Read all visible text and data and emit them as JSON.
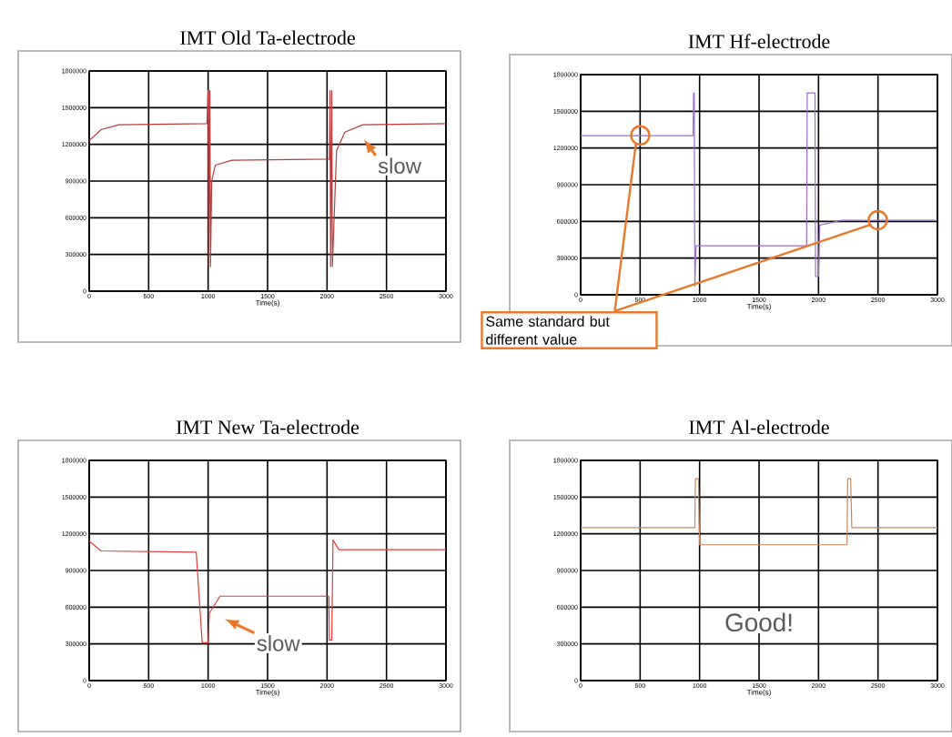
{
  "chart_data": [
    {
      "type": "line",
      "title": "IMT Old Ta-electrode",
      "xlabel": "Time(s)",
      "color": "#b83c3c",
      "xlim": [
        0,
        3000
      ],
      "ylim": [
        0,
        1800000
      ],
      "xticks": [
        0,
        500,
        1000,
        1500,
        2000,
        2500,
        3000
      ],
      "yticks": [
        0,
        300000,
        600000,
        900000,
        1200000,
        1500000,
        1800000
      ],
      "grid": true,
      "x": [
        0,
        100,
        250,
        990,
        1000,
        1005,
        1015,
        1020,
        1030,
        1060,
        1200,
        2020,
        2025,
        2030,
        2040,
        2045,
        2080,
        2150,
        2300,
        3000
      ],
      "values": [
        1230000,
        1320000,
        1360000,
        1370000,
        1640000,
        200000,
        1640000,
        200000,
        900000,
        1030000,
        1070000,
        1080000,
        1640000,
        200000,
        1640000,
        200000,
        1150000,
        1300000,
        1360000,
        1370000
      ],
      "annotations": [
        "slow"
      ]
    },
    {
      "type": "line",
      "title": "IMT Hf-electrode",
      "xlabel": "Time(s)",
      "color": "#9b6bd6",
      "xlim": [
        0,
        3000
      ],
      "ylim": [
        0,
        1800000
      ],
      "xticks": [
        0,
        500,
        1000,
        1500,
        2000,
        2500,
        3000
      ],
      "yticks": [
        0,
        300000,
        600000,
        900000,
        1200000,
        1500000,
        1800000
      ],
      "grid": true,
      "x": [
        0,
        945,
        950,
        955,
        960,
        970,
        1900,
        1905,
        1970,
        1975,
        2000,
        2010,
        2200,
        3000
      ],
      "values": [
        1300000,
        1300000,
        1650000,
        1650000,
        70000,
        400000,
        400000,
        1650000,
        1650000,
        150000,
        150000,
        570000,
        610000,
        610000
      ],
      "annotations": [
        "Same standard but different value"
      ]
    },
    {
      "type": "line",
      "title": "IMT New Ta-electrode",
      "xlabel": "Time(s)",
      "color": "#e03c3c",
      "xlim": [
        0,
        3000
      ],
      "ylim": [
        0,
        1800000
      ],
      "xticks": [
        0,
        500,
        1000,
        1500,
        2000,
        2500,
        3000
      ],
      "yticks": [
        0,
        300000,
        600000,
        900000,
        1200000,
        1500000,
        1800000
      ],
      "grid": true,
      "x": [
        0,
        100,
        900,
        950,
        1000,
        1010,
        1100,
        2015,
        2020,
        2040,
        2050,
        2100,
        3000
      ],
      "values": [
        1140000,
        1060000,
        1050000,
        310000,
        310000,
        550000,
        690000,
        690000,
        330000,
        330000,
        1150000,
        1070000,
        1070000
      ],
      "annotations": [
        "slow"
      ]
    },
    {
      "type": "line",
      "title": "IMT Al-electrode",
      "xlabel": "Time(s)",
      "color": "#c8855a",
      "xlim": [
        0,
        3000
      ],
      "ylim": [
        0,
        1800000
      ],
      "xticks": [
        0,
        500,
        1000,
        1500,
        2000,
        2500,
        3000
      ],
      "yticks": [
        0,
        300000,
        600000,
        900000,
        1200000,
        1500000,
        1800000
      ],
      "grid": true,
      "x": [
        0,
        960,
        965,
        990,
        1000,
        2240,
        2245,
        2270,
        2280,
        3000
      ],
      "values": [
        1250000,
        1250000,
        1650000,
        1650000,
        1110000,
        1110000,
        1650000,
        1650000,
        1250000,
        1250000
      ],
      "annotations": [
        "Good!"
      ]
    }
  ]
}
